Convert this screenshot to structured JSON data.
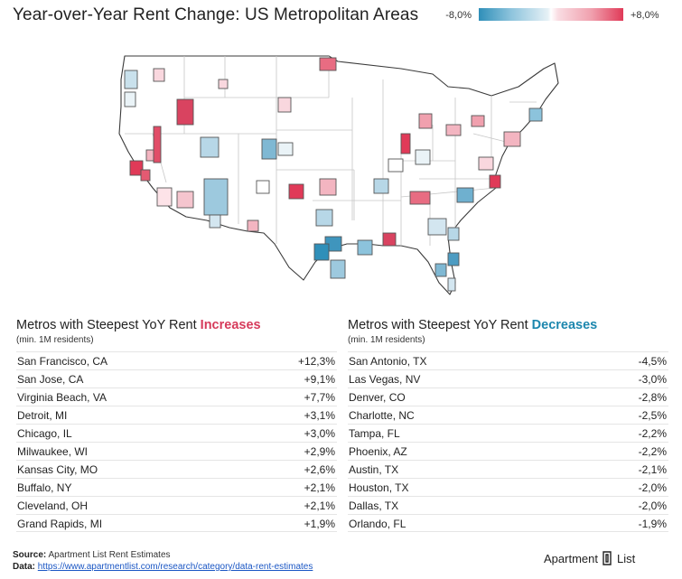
{
  "title": "Year-over-Year Rent Change: US Metropolitan Areas",
  "legend": {
    "min_label": "-8,0%",
    "max_label": "+8,0%"
  },
  "colors": {
    "increase": "#d63b5b",
    "decrease": "#1d87ae"
  },
  "chart_data": {
    "type": "table",
    "title": "Year-over-Year Rent Change: US Metropolitan Areas",
    "color_scale": {
      "min": -8.0,
      "max": 8.0,
      "min_color": "#2f8fb9",
      "max_color": "#e03a58"
    },
    "increases": {
      "title_prefix": "Metros with Steepest YoY Rent ",
      "title_emph": "Increases",
      "subtitle": "(min. 1M residents)",
      "rows": [
        {
          "metro": "San Francisco, CA",
          "value": "+12,3%"
        },
        {
          "metro": "San Jose, CA",
          "value": "+9,1%"
        },
        {
          "metro": "Virginia Beach, VA",
          "value": "+7,7%"
        },
        {
          "metro": "Detroit, MI",
          "value": "+3,1%"
        },
        {
          "metro": "Chicago, IL",
          "value": "+3,0%"
        },
        {
          "metro": "Milwaukee, WI",
          "value": "+2,9%"
        },
        {
          "metro": "Kansas City, MO",
          "value": "+2,6%"
        },
        {
          "metro": "Buffalo, NY",
          "value": "+2,1%"
        },
        {
          "metro": "Cleveland, OH",
          "value": "+2,1%"
        },
        {
          "metro": "Grand Rapids, MI",
          "value": "+1,9%"
        }
      ]
    },
    "decreases": {
      "title_prefix": "Metros with Steepest YoY Rent ",
      "title_emph": "Decreases",
      "subtitle": "(min. 1M residents)",
      "rows": [
        {
          "metro": "San Antonio, TX",
          "value": "-4,5%"
        },
        {
          "metro": "Las Vegas, NV",
          "value": "-3,0%"
        },
        {
          "metro": "Denver, CO",
          "value": "-2,8%"
        },
        {
          "metro": "Charlotte, NC",
          "value": "-2,5%"
        },
        {
          "metro": "Tampa, FL",
          "value": "-2,2%"
        },
        {
          "metro": "Phoenix, AZ",
          "value": "-2,2%"
        },
        {
          "metro": "Austin, TX",
          "value": "-2,1%"
        },
        {
          "metro": "Houston, TX",
          "value": "-2,0%"
        },
        {
          "metro": "Dallas, TX",
          "value": "-2,0%"
        },
        {
          "metro": "Orlando, FL",
          "value": "-1,9%"
        }
      ]
    }
  },
  "footer": {
    "source_label": "Source:",
    "source_text": " Apartment List Rent Estimates",
    "data_label": "Data:",
    "data_link": "https://www.apartmentlist.com/research/category/data-rent-estimates"
  },
  "logo": {
    "left": "Apartment",
    "right": "List"
  }
}
